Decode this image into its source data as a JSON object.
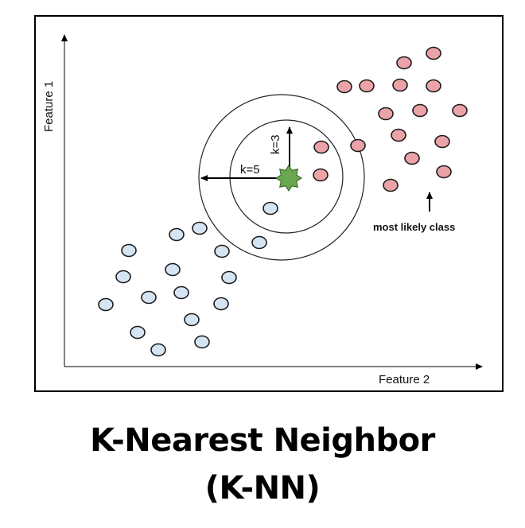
{
  "diagram": {
    "axis_labels": {
      "x": "Feature 2",
      "y": "Feature 1"
    },
    "radius_labels": {
      "inner": "k=3",
      "outer": "k=5"
    },
    "annotation": "most likely class",
    "colors": {
      "red_point": "#eba3a8",
      "blue_point": "#d5e4f2",
      "point_outline": "#1a1a1a",
      "query_point": "#6aa84f"
    }
  },
  "caption": {
    "line1": "K-Nearest Neighbor",
    "line2": "(K-NN)"
  }
}
